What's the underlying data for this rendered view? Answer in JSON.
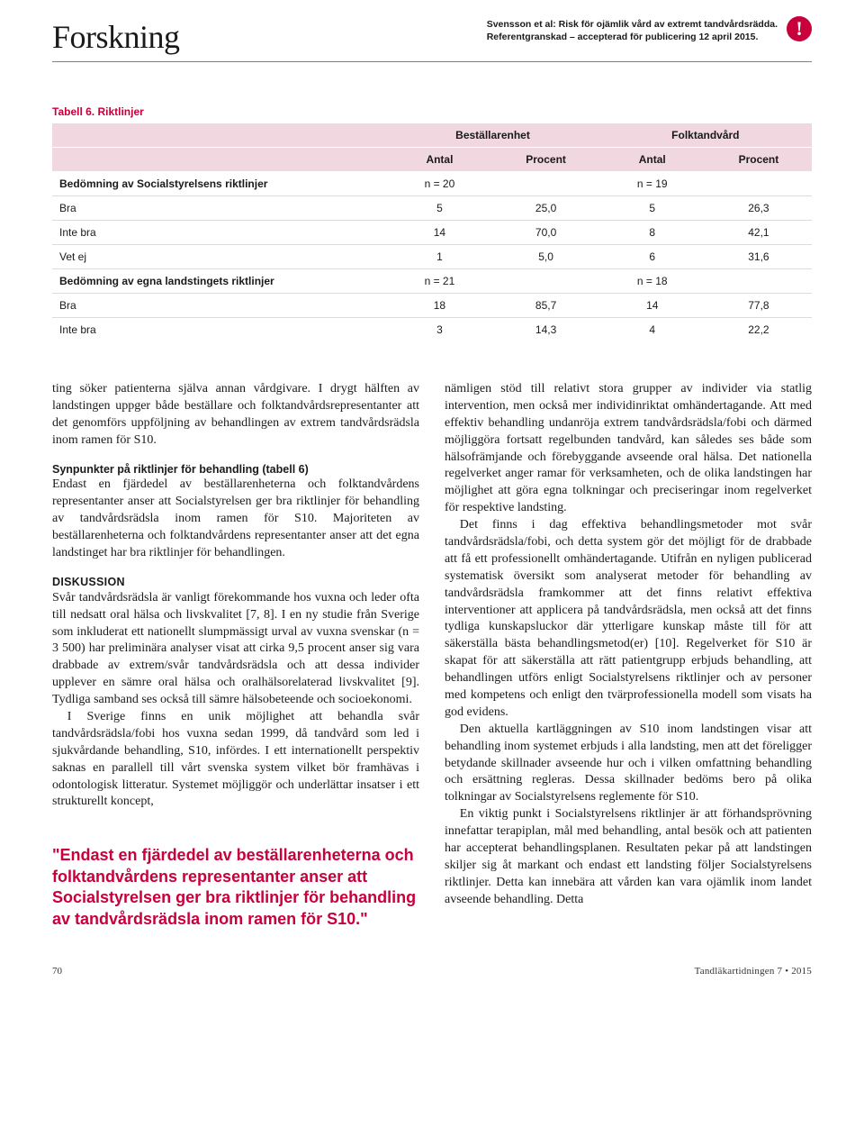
{
  "header": {
    "section_title": "Forskning",
    "citation_line1": "Svensson et al: Risk för ojämlik vård av extremt tandvårdsrädda.",
    "citation_line2": "Referentgranskad – accepterad för publicering 12 april 2015.",
    "alert_glyph": "!"
  },
  "table": {
    "caption": "Tabell 6. Riktlinjer",
    "group_headers": [
      "",
      "Beställarenhet",
      "Folktandvård"
    ],
    "sub_headers": [
      "",
      "Antal",
      "Procent",
      "Antal",
      "Procent"
    ],
    "rows": [
      {
        "label": "Bedömning av Socialstyrelsens riktlinjer",
        "cells": [
          "n = 20",
          "",
          "n = 19",
          ""
        ],
        "section": true
      },
      {
        "label": "Bra",
        "cells": [
          "5",
          "25,0",
          "5",
          "26,3"
        ],
        "section": false
      },
      {
        "label": "Inte bra",
        "cells": [
          "14",
          "70,0",
          "8",
          "42,1"
        ],
        "section": false
      },
      {
        "label": "Vet ej",
        "cells": [
          "1",
          "5,0",
          "6",
          "31,6"
        ],
        "section": false
      },
      {
        "label": "Bedömning av egna landstingets riktlinjer",
        "cells": [
          "n = 21",
          "",
          "n = 18",
          ""
        ],
        "section": true
      },
      {
        "label": "Bra",
        "cells": [
          "18",
          "85,7",
          "14",
          "77,8"
        ],
        "section": false
      },
      {
        "label": "Inte bra",
        "cells": [
          "3",
          "14,3",
          "4",
          "22,2"
        ],
        "section": false
      }
    ],
    "colors": {
      "header_bg": "#f0d7e0",
      "accent": "#c8003c",
      "row_border": "#dcdcdc"
    }
  },
  "body": {
    "col1": {
      "p1": "ting söker patienterna själva annan vårdgivare. I drygt hälften av landstingen uppger både beställare och folktandvårdsrepresentanter att det genomförs uppföljning av behandlingen av extrem tandvårdsrädsla inom ramen för S10.",
      "sub1": "Synpunkter på riktlinjer för behandling (tabell 6)",
      "p2": "Endast en fjärdedel av beställarenheterna och folktandvårdens representanter anser att Socialstyrelsen ger bra riktlinjer för behandling av tandvårdsrädsla inom ramen för S10. Majoriteten av beställarenheterna och folktandvårdens representanter anser att det egna landstinget har bra riktlinjer för behandlingen.",
      "sub2": "DISKUSSION",
      "p3": "Svår tandvårdsrädsla är vanligt förekommande hos vuxna och leder ofta till nedsatt oral hälsa och livskvalitet [7, 8]. I en ny studie från Sverige som inkluderat ett nationellt slumpmässigt urval av vuxna svenskar (n = 3 500) har preliminära analyser visat att cirka 9,5 procent anser sig vara drabbade av extrem/svår tandvårdsrädsla och att dessa individer upplever en sämre oral hälsa och oralhälsorelaterad livskvalitet [9]. Tydliga samband ses också till sämre hälsobeteende och socioekonomi.",
      "p4": "I Sverige finns en unik möjlighet att behandla svår tandvårdsrädsla/fobi hos vuxna sedan 1999, då tandvård som led i sjukvårdande behandling, S10, infördes. I ett internationellt perspektiv saknas en parallell till vårt svenska system vilket bör framhävas i odontologisk litteratur. Systemet möjliggör och underlättar insatser i ett strukturellt koncept,"
    },
    "col2": {
      "p1": "nämligen stöd till relativt stora grupper av individer via statlig intervention, men också mer individinriktat omhändertagande. Att med effektiv behandling undanröja extrem tandvårdsrädsla/fobi och därmed möjliggöra fortsatt regelbunden tandvård, kan således ses både som hälsofrämjande och förebyggande avseende oral hälsa. Det nationella regelverket anger ramar för verksamheten, och de olika landstingen har möjlighet att göra egna tolkningar och preciseringar inom regelverket för respektive landsting.",
      "p2": "Det finns i dag effektiva behandlingsmetoder mot svår tandvårdsrädsla/fobi, och detta system gör det möjligt för de drabbade att få ett professionellt omhändertagande. Utifrån en nyligen publicerad systematisk översikt som analyserat metoder för behandling av tandvårdsrädsla framkommer att det finns relativt effektiva interventioner att applicera på tandvårdsrädsla, men också att det finns tydliga kunskapsluckor där ytterligare kunskap måste till för att säkerställa bästa behandlingsmetod(er) [10]. Regelverket för S10 är skapat för att säkerställa att rätt patientgrupp erbjuds behandling, att behandlingen utförs enligt Socialstyrelsens riktlinjer och av personer med kompetens och enligt den tvärprofessionella modell som visats ha god evidens.",
      "p3": "Den aktuella kartläggningen av S10 inom landstingen visar att behandling inom systemet erbjuds i alla landsting, men att det föreligger betydande skillnader avseende hur och i vilken omfattning behandling och ersättning regleras. Dessa skillnader bedöms bero på olika tolkningar av Socialstyrelsens reglemente för S10.",
      "p4": "En viktig punkt i Socialstyrelsens riktlinjer är att förhandsprövning innefattar terapiplan, mål med behandling, antal besök och att patienten har accepterat behandlingsplanen. Resultaten pekar på att landstingen skiljer sig åt markant och endast ett landsting följer Socialstyrelsens riktlinjer. Detta kan innebära att vården kan vara ojämlik inom landet avseende behandling. Detta"
    }
  },
  "pull_quote": "\"Endast en fjärdedel av beställarenheterna och folktandvårdens representanter anser att Socialstyrelsen ger bra riktlinjer för behandling av tandvårdsrädsla inom ramen för S10.\"",
  "footer": {
    "page_number": "70",
    "pub": "Tandläkartidningen 7 • 2015"
  }
}
